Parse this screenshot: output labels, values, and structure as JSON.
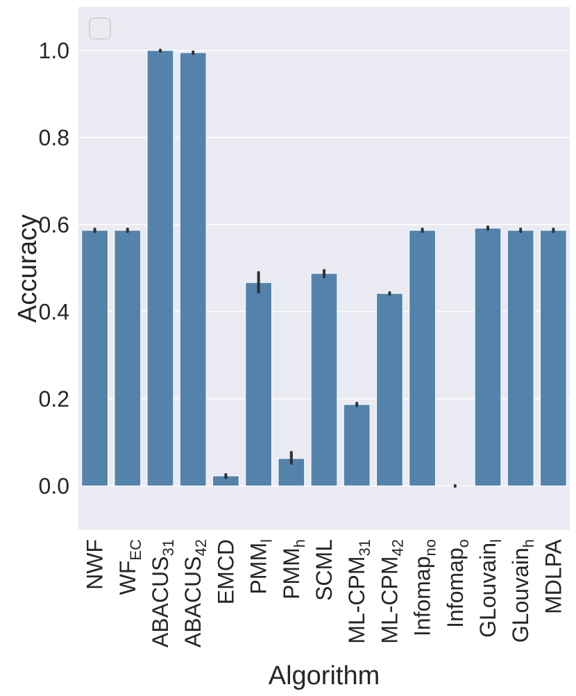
{
  "chart_data": {
    "type": "bar",
    "xlabel": "Algorithm",
    "ylabel": "Accuracy",
    "ylim": [
      -0.1,
      1.1
    ],
    "yticks": [
      "0.0",
      "0.2",
      "0.4",
      "0.6",
      "0.8",
      "1.0"
    ],
    "ytick_values": [
      0.0,
      0.2,
      0.4,
      0.6,
      0.8,
      1.0
    ],
    "grid": true,
    "legend": "top-left (empty)",
    "bar_color": "#5383ab",
    "background_color": "#eaeaf2",
    "error_bar_color": "#303030",
    "categories": [
      {
        "main": "NWF",
        "sub": ""
      },
      {
        "main": "WF",
        "sub": "EC"
      },
      {
        "main": "ABACUS",
        "sub": "31"
      },
      {
        "main": "ABACUS",
        "sub": "42"
      },
      {
        "main": "EMCD",
        "sub": ""
      },
      {
        "main": "PMM",
        "sub": "l"
      },
      {
        "main": "PMM",
        "sub": "h"
      },
      {
        "main": "SCML",
        "sub": ""
      },
      {
        "main": "ML-CPM",
        "sub": "31"
      },
      {
        "main": "ML-CPM",
        "sub": "42"
      },
      {
        "main": "Infomap",
        "sub": "no"
      },
      {
        "main": "Infomap",
        "sub": "o"
      },
      {
        "main": "GLouvain",
        "sub": "l"
      },
      {
        "main": "GLouvain",
        "sub": "h"
      },
      {
        "main": "MDLPA",
        "sub": ""
      }
    ],
    "values": [
      0.587,
      0.587,
      1.0,
      0.995,
      0.023,
      0.467,
      0.063,
      0.488,
      0.187,
      0.442,
      0.587,
      0.0,
      0.592,
      0.587,
      0.587
    ],
    "errors": [
      [
        0.584,
        0.59
      ],
      [
        0.584,
        0.59
      ],
      [
        0.998,
        1.001
      ],
      [
        0.993,
        0.997
      ],
      [
        0.019,
        0.026
      ],
      [
        0.445,
        0.49
      ],
      [
        0.052,
        0.077
      ],
      [
        0.48,
        0.495
      ],
      [
        0.184,
        0.19
      ],
      [
        0.44,
        0.444
      ],
      [
        0.584,
        0.59
      ],
      [
        -0.001,
        0.001
      ],
      [
        0.589,
        0.595
      ],
      [
        0.584,
        0.59
      ],
      [
        0.584,
        0.59
      ]
    ]
  }
}
